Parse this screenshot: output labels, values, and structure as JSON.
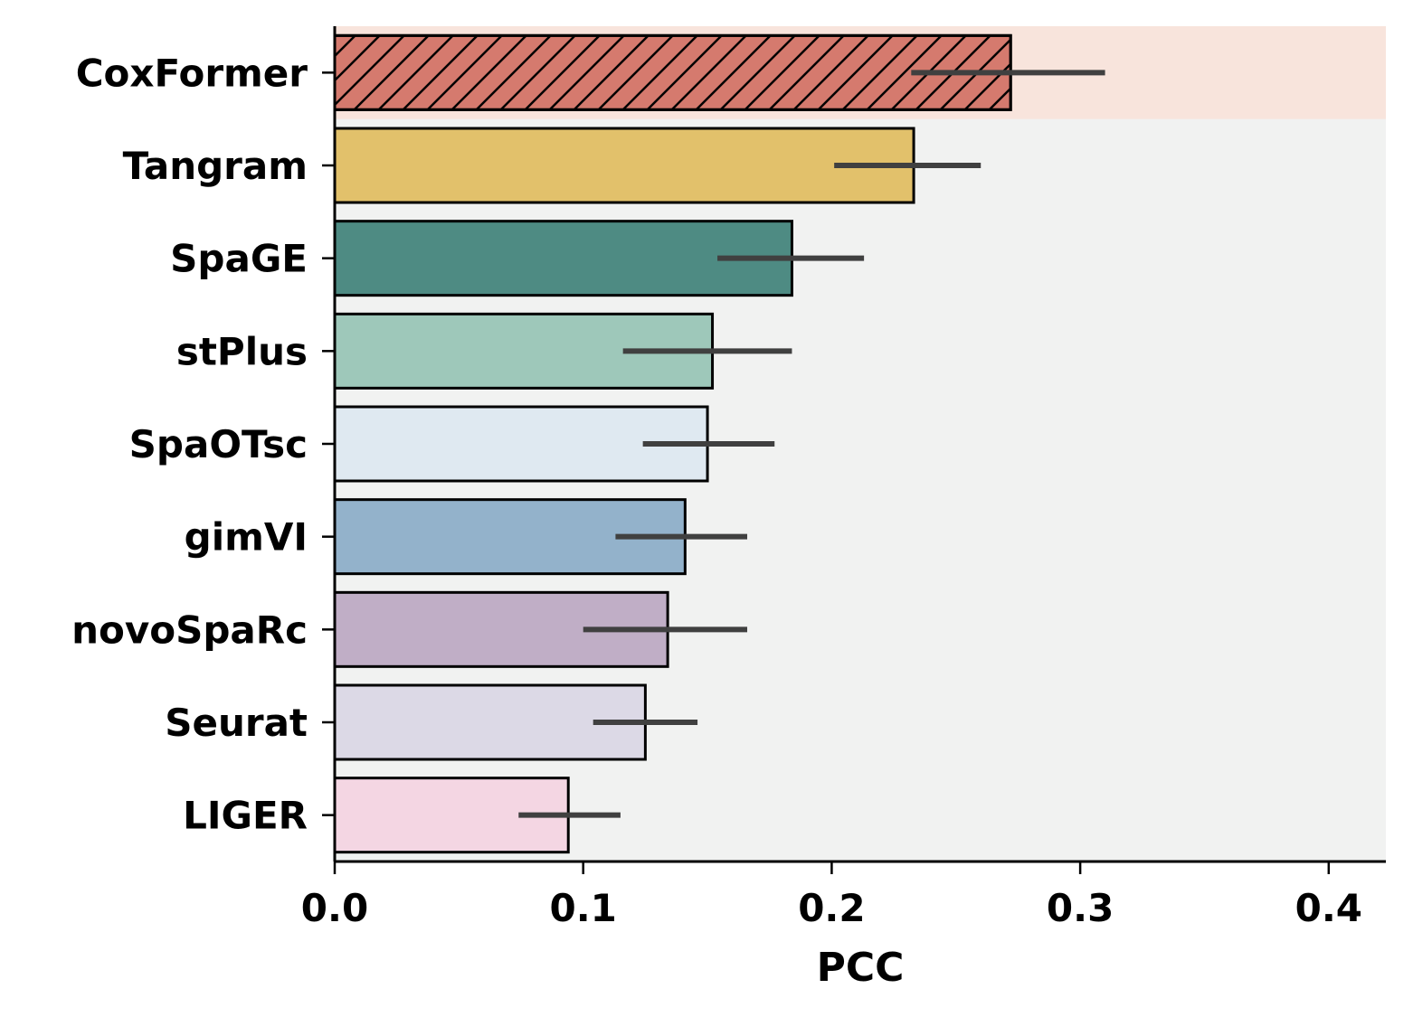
{
  "chart_data": {
    "type": "bar",
    "orientation": "horizontal",
    "categories": [
      "CoxFormer",
      "Tangram",
      "SpaGE",
      "stPlus",
      "SpaOTsc",
      "gimVI",
      "novoSpaRc",
      "Seurat",
      "LIGER"
    ],
    "values": [
      0.272,
      0.233,
      0.184,
      0.152,
      0.15,
      0.141,
      0.134,
      0.125,
      0.094
    ],
    "error_low": [
      0.232,
      0.201,
      0.154,
      0.116,
      0.124,
      0.113,
      0.1,
      0.104,
      0.074
    ],
    "error_high": [
      0.31,
      0.26,
      0.213,
      0.184,
      0.177,
      0.166,
      0.166,
      0.146,
      0.115
    ],
    "colors": [
      "#D57A6E",
      "#E2C16B",
      "#4E8B83",
      "#9EC8BA",
      "#DFE9F1",
      "#93B2CB",
      "#C0AEC6",
      "#DCD9E6",
      "#F4D6E3"
    ],
    "hatched": [
      true,
      false,
      false,
      false,
      false,
      false,
      false,
      false,
      false
    ],
    "highlight_background": "#F8E4DC",
    "plot_background": "#F1F2F1",
    "error_bar_color": "#404040",
    "title": "",
    "xlabel": "PCC",
    "ylabel": "",
    "xlim": [
      0.0,
      0.423
    ],
    "xticks": [
      "0.0",
      "0.1",
      "0.2",
      "0.3",
      "0.4"
    ],
    "grid": false,
    "legend": false
  }
}
